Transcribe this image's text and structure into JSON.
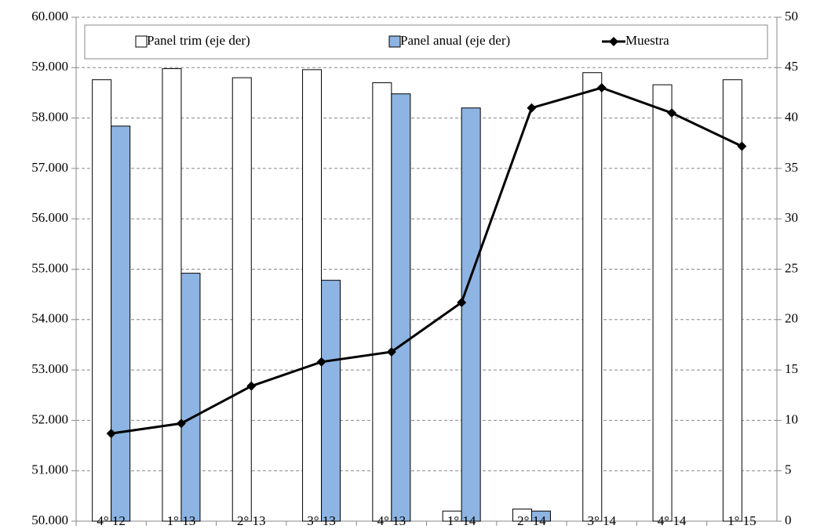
{
  "chart_data": {
    "type": "bar-line",
    "categories": [
      "4° 12",
      "1° 13",
      "2° 13",
      "3° 13",
      "4° 13",
      "1° 14",
      "2° 14",
      "3° 14",
      "4° 14",
      "1° 15"
    ],
    "series": [
      {
        "name": "Panel trim (eje der)",
        "type": "bar",
        "axis": "y2",
        "color": "#ffffff",
        "values": [
          43.8,
          44.9,
          44.0,
          44.8,
          43.5,
          1.0,
          1.2,
          44.5,
          43.3,
          43.8
        ]
      },
      {
        "name": "Panel anual (eje der)",
        "type": "bar",
        "axis": "y2",
        "color": "#8db4e2",
        "values": [
          39.2,
          24.6,
          null,
          23.9,
          42.4,
          41.0,
          1.0,
          null,
          null,
          null
        ]
      },
      {
        "name": "Muestra",
        "type": "line",
        "axis": "y",
        "color": "#000000",
        "values": [
          51740,
          51940,
          52680,
          53160,
          53360,
          54340,
          58200,
          58600,
          58100,
          57440
        ]
      }
    ],
    "ylim": [
      50000,
      60000
    ],
    "yticks": [
      {
        "value": 50000,
        "label": "50.000"
      },
      {
        "value": 51000,
        "label": "51.000"
      },
      {
        "value": 52000,
        "label": "52.000"
      },
      {
        "value": 53000,
        "label": "53.000"
      },
      {
        "value": 54000,
        "label": "54.000"
      },
      {
        "value": 55000,
        "label": "55.000"
      },
      {
        "value": 56000,
        "label": "56.000"
      },
      {
        "value": 57000,
        "label": "57.000"
      },
      {
        "value": 58000,
        "label": "58.000"
      },
      {
        "value": 59000,
        "label": "59.000"
      },
      {
        "value": 60000,
        "label": "60.000"
      }
    ],
    "y2lim": [
      0,
      50
    ],
    "y2ticks": [
      0,
      5,
      10,
      15,
      20,
      25,
      30,
      35,
      40,
      45,
      50
    ],
    "grid": true,
    "legend": "top"
  }
}
